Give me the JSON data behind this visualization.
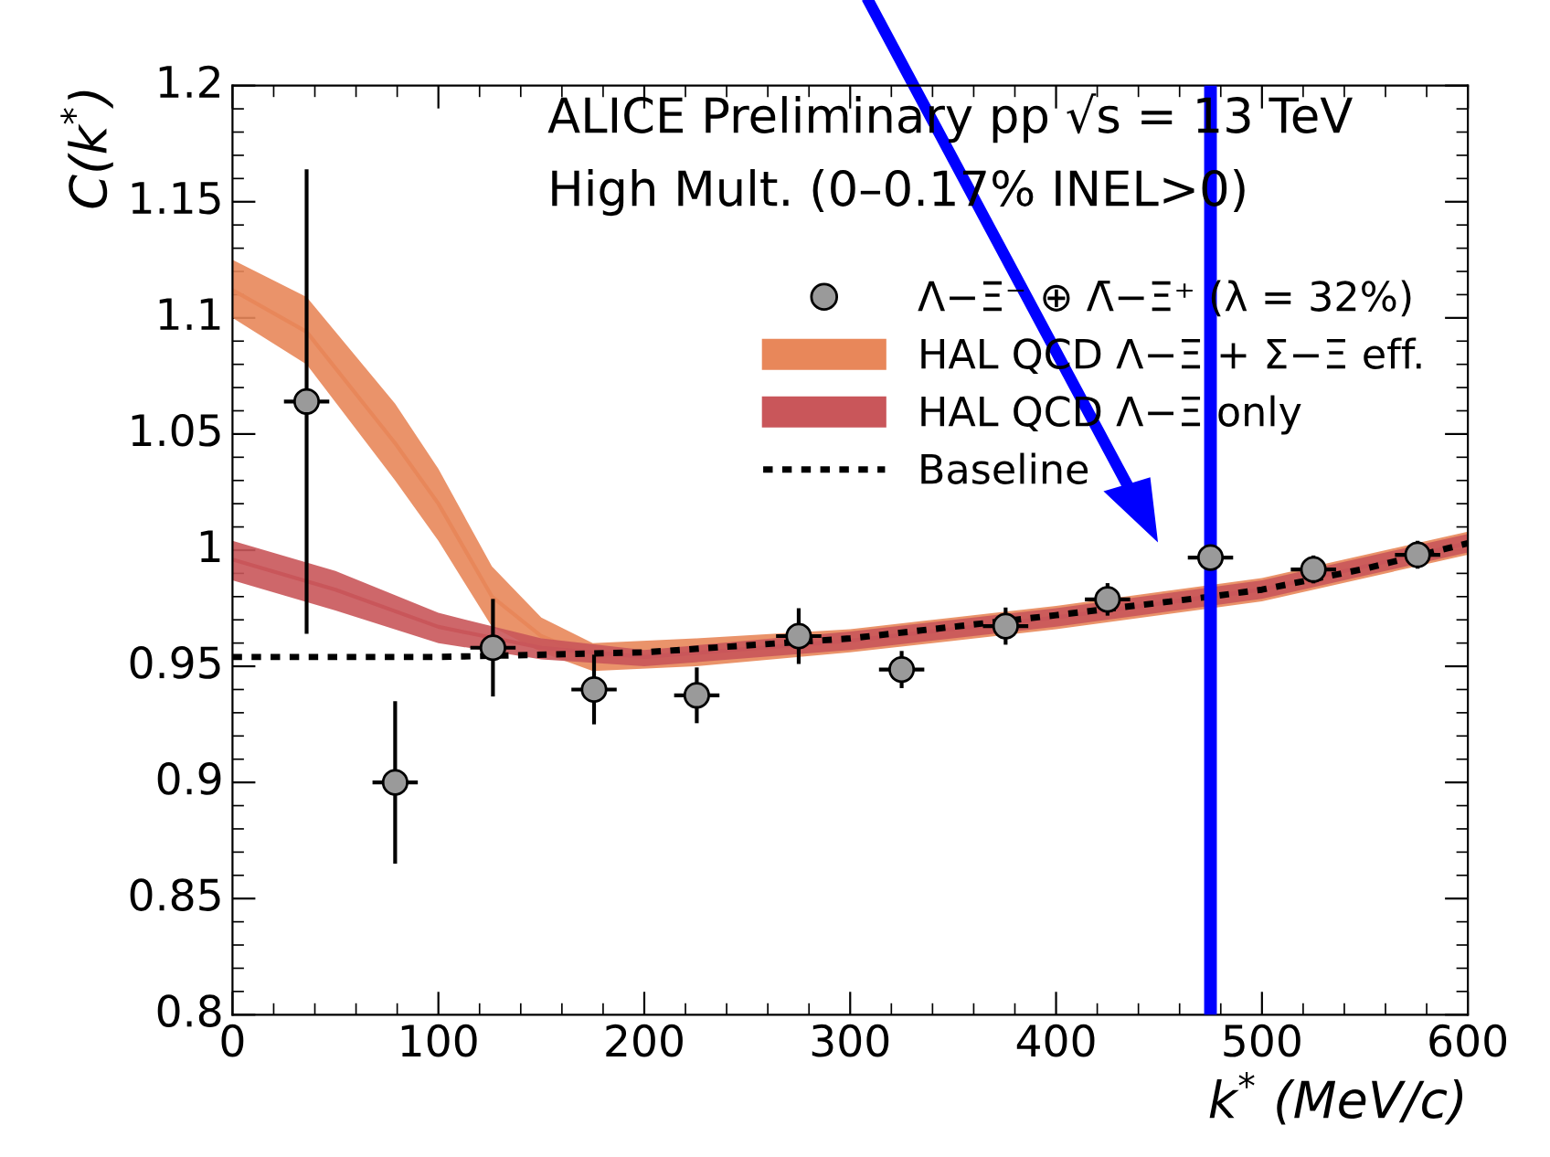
{
  "chart_data": {
    "type": "scatter",
    "xlabel": "k$^{*}$ (MeV/c)",
    "ylabel": "C(k$^{*}$)",
    "annotations": [
      "ALICE Preliminary pp √s = 13 TeV",
      "High Mult. (0–0.17% INEL>0)"
    ],
    "xlim": [
      0,
      600
    ],
    "xticks": [
      0,
      100,
      200,
      300,
      400,
      500,
      600
    ],
    "ylim": [
      0.8,
      1.2
    ],
    "yticks": [
      0.8,
      0.85,
      0.9,
      0.95,
      1,
      1.05,
      1.1,
      1.15,
      1.2
    ],
    "grid": false,
    "legend": "top right",
    "series": [
      {
        "name": "Λ−Ξ⁻ ⊕ Λ̄−Ξ⁺ (λ = 32%)",
        "color": "#9a9a9a",
        "marker": "circle",
        "x": [
          36,
          79,
          126.5,
          175.6,
          225.5,
          275,
          325,
          375.5,
          425,
          475,
          525,
          575.6
        ],
        "values": [
          1.064,
          0.9,
          0.958,
          0.94,
          0.9375,
          0.963,
          0.9486,
          0.9673,
          0.9788,
          0.9968,
          0.9917,
          0.998
        ],
        "errors": [
          0.1,
          0.035,
          0.021,
          0.015,
          0.012,
          0.012,
          0.008,
          0.008,
          0.007,
          null,
          0.006,
          0.006
        ],
        "xerrors": [
          11,
          11,
          11,
          11,
          11,
          11,
          11,
          11,
          11,
          11,
          11,
          11
        ]
      },
      {
        "name": "HAL QCD Λ−Ξ + Σ−Ξ eff.",
        "type": "line",
        "color": "#e8875a",
        "x": [
          0,
          36,
          79,
          100,
          126,
          150,
          175,
          225,
          300,
          400,
          500,
          600
        ],
        "values": [
          1.112,
          1.094,
          1.046,
          1.02,
          0.98,
          0.963,
          0.954,
          0.956,
          null,
          null,
          null,
          null
        ],
        "lower": [
          1.1,
          1.08,
          1.03,
          1.004,
          0.967,
          0.956,
          0.948,
          0.95,
          0.956,
          0.966,
          0.978,
          0.998
        ],
        "upper": [
          1.125,
          1.109,
          1.063,
          1.035,
          0.993,
          0.971,
          0.96,
          0.962,
          0.966,
          0.976,
          0.988,
          1.008
        ]
      },
      {
        "name": "HAL QCD Λ−Ξ only",
        "type": "line",
        "color": "#c9565a",
        "x": [
          0,
          50,
          100,
          150,
          200,
          300,
          400,
          500,
          600
        ],
        "values": [
          0.996,
          0.983,
          0.967,
          0.958,
          0.954,
          0.961,
          0.971,
          0.983,
          1.003
        ],
        "lower": [
          0.987,
          0.974,
          0.96,
          0.953,
          0.95,
          0.957,
          0.967,
          0.979,
          0.999
        ],
        "upper": [
          1.004,
          0.991,
          0.973,
          0.962,
          0.957,
          0.965,
          0.975,
          0.987,
          1.007
        ]
      },
      {
        "name": "Baseline",
        "type": "line",
        "color": "#000000",
        "line_style": "dotted",
        "x": [
          0,
          100,
          200,
          300,
          400,
          475,
          500,
          550,
          600
        ],
        "values": [
          0.954,
          0.954,
          0.956,
          0.962,
          0.972,
          0.98,
          0.983,
          0.992,
          1.003
        ]
      }
    ],
    "ref_lines": [
      {
        "axis": "x",
        "value": 475,
        "color": "#0000ff"
      }
    ]
  }
}
